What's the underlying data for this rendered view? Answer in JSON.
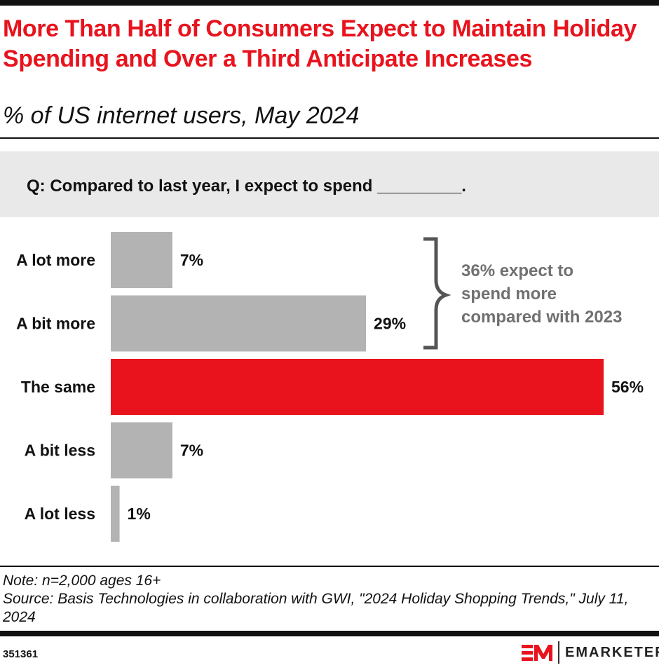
{
  "title": "More Than Half of Consumers Expect to Maintain Holiday Spending and Over a Third Anticipate Increases",
  "subtitle": "% of US internet users, May 2024",
  "question": "Q: Compared to last year, I expect to spend _________.",
  "chart_data": {
    "type": "bar",
    "orientation": "horizontal",
    "categories": [
      "A lot more",
      "A bit more",
      "The same",
      "A bit less",
      "A lot less"
    ],
    "values": [
      7,
      29,
      56,
      7,
      1
    ],
    "data_labels": [
      "7%",
      "29%",
      "56%",
      "7%",
      "1%"
    ],
    "unit": "%",
    "colors": [
      "#b3b3b3",
      "#b3b3b3",
      "#e8131d",
      "#b3b3b3",
      "#b3b3b3"
    ],
    "annotation": {
      "lines": [
        "36% expect to",
        "spend more",
        "compared with 2023"
      ],
      "brackets": [
        "A lot more",
        "A bit more"
      ],
      "color": "#707070"
    },
    "grid": false,
    "legend": "none"
  },
  "note": "Note: n=2,000 ages 16+",
  "source": "Source: Basis Technologies in collaboration with GWI, \"2024 Holiday Shopping Trends,\" July 11, 2024",
  "chart_id": "351361",
  "logo": {
    "mark": "EM",
    "word": "EMARKETER",
    "color": "#e8131d"
  }
}
